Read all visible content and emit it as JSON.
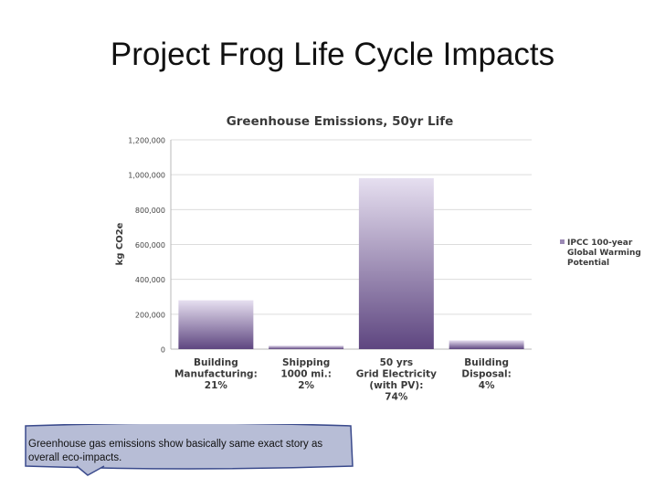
{
  "slide": {
    "title": "Project Frog Life Cycle Impacts",
    "callout_text": "Greenhouse gas emissions show basically same exact story as overall eco-impacts."
  },
  "chart_data": {
    "type": "bar",
    "title": "Greenhouse Emissions, 50yr Life",
    "xlabel": "",
    "ylabel": "kg CO2e",
    "ylim": [
      0,
      1200000
    ],
    "yticks": [
      0,
      200000,
      400000,
      600000,
      800000,
      1000000,
      1200000
    ],
    "ytick_labels": [
      "0",
      "200,000",
      "400,000",
      "600,000",
      "800,000",
      "1,000,000",
      "1,200,000"
    ],
    "grid": true,
    "legend_position": "right",
    "categories": [
      [
        "Building",
        "Manufacturing:",
        "21%"
      ],
      [
        "Shipping",
        "1000 mi.:",
        "2%"
      ],
      [
        "50 yrs",
        "Grid Electricity",
        "(with PV):",
        "74%"
      ],
      [
        "Building",
        "Disposal:",
        "4%"
      ]
    ],
    "series": [
      {
        "name": "IPCC 100-year Global Warming Potential",
        "name_lines": [
          "IPCC 100-year",
          "Global Warming",
          "Potential"
        ],
        "values": [
          280000,
          20000,
          980000,
          50000
        ]
      }
    ],
    "colors": {
      "bar_top": "#e6dff0",
      "bar_bottom": "#5e4680",
      "grid": "#dcdcdc",
      "text": "#3a3a3a"
    }
  }
}
